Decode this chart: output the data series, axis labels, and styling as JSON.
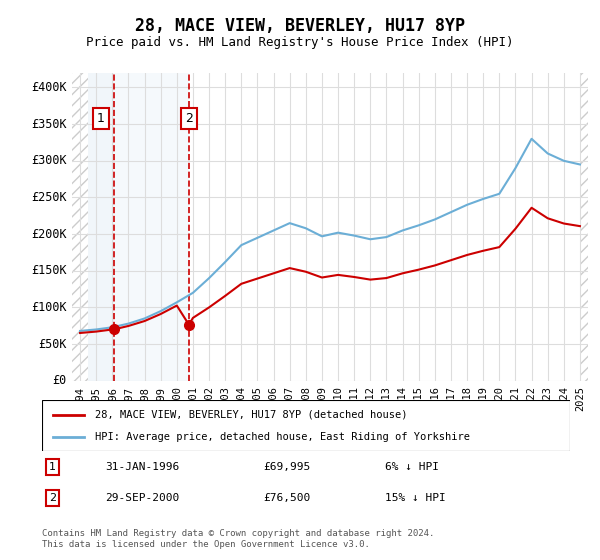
{
  "title": "28, MACE VIEW, BEVERLEY, HU17 8YP",
  "subtitle": "Price paid vs. HM Land Registry's House Price Index (HPI)",
  "legend_line1": "28, MACE VIEW, BEVERLEY, HU17 8YP (detached house)",
  "legend_line2": "HPI: Average price, detached house, East Riding of Yorkshire",
  "footer": "Contains HM Land Registry data © Crown copyright and database right 2024.\nThis data is licensed under the Open Government Licence v3.0.",
  "table": [
    {
      "num": "1",
      "date": "31-JAN-1996",
      "price": "£69,995",
      "hpi": "6% ↓ HPI"
    },
    {
      "num": "2",
      "date": "29-SEP-2000",
      "price": "£76,500",
      "hpi": "15% ↓ HPI"
    }
  ],
  "sale1_x": 1996.08,
  "sale1_y": 69995,
  "sale2_x": 2000.75,
  "sale2_y": 76500,
  "ylim": [
    0,
    420000
  ],
  "xlim": [
    1993.5,
    2025.5
  ],
  "yticks": [
    0,
    50000,
    100000,
    150000,
    200000,
    250000,
    300000,
    350000,
    400000
  ],
  "ytick_labels": [
    "£0",
    "£50K",
    "£100K",
    "£150K",
    "£200K",
    "£250K",
    "£300K",
    "£350K",
    "£400K"
  ],
  "xticks": [
    1994,
    1995,
    1996,
    1997,
    1998,
    1999,
    2000,
    2001,
    2002,
    2003,
    2004,
    2005,
    2006,
    2007,
    2008,
    2009,
    2010,
    2011,
    2012,
    2013,
    2014,
    2015,
    2016,
    2017,
    2018,
    2019,
    2020,
    2021,
    2022,
    2023,
    2024,
    2025
  ],
  "hpi_color": "#6baed6",
  "sale_color": "#cc0000",
  "hatch_color": "#cccccc",
  "grid_color": "#dddddd",
  "sale_marker_color": "#cc0000",
  "vline_color": "#cc0000",
  "highlight_bg1": "#e8f0f8",
  "highlight_bg2": "#e8f0f8"
}
